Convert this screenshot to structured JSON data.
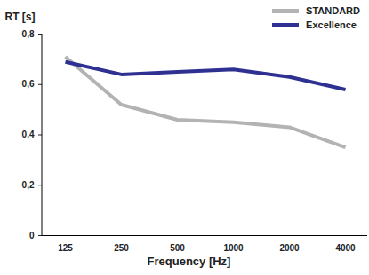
{
  "chart_data": {
    "type": "line",
    "ylabel": "RT [s]",
    "xlabel": "Frequency [Hz]",
    "categories": [
      "125",
      "250",
      "500",
      "1000",
      "2000",
      "4000"
    ],
    "series": [
      {
        "name": "STANDARD",
        "color": "#b3b3b3",
        "values": [
          0.71,
          0.52,
          0.46,
          0.45,
          0.43,
          0.35
        ]
      },
      {
        "name": "Excellence",
        "color": "#2e3192",
        "values": [
          0.69,
          0.64,
          0.65,
          0.66,
          0.63,
          0.58
        ]
      }
    ],
    "ylim": [
      0,
      0.8
    ],
    "yticks": [
      0,
      {
        "value": 0.2,
        "label": "0,2"
      },
      {
        "value": 0.4,
        "label": "0,4"
      },
      {
        "value": 0.6,
        "label": "0,6"
      },
      {
        "value": 0.8,
        "label": "0,8"
      }
    ],
    "grid": false,
    "legend": "top-right"
  }
}
